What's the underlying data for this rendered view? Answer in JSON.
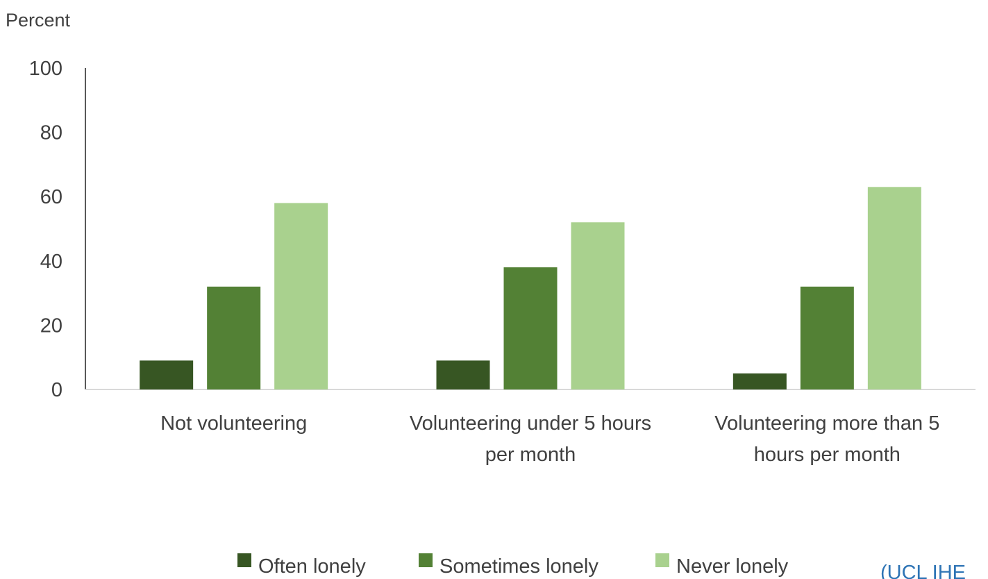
{
  "chart_data": {
    "type": "bar",
    "ylabel": "Percent",
    "xlabel": "",
    "ylim": [
      0,
      100
    ],
    "yticks": [
      0,
      20,
      40,
      60,
      80,
      100
    ],
    "categories": [
      [
        "Not volunteering"
      ],
      [
        "Volunteering under 5 hours",
        "per month"
      ],
      [
        "Volunteering more than 5",
        "hours per month"
      ]
    ],
    "series": [
      {
        "name": "Often lonely",
        "color": "#375623",
        "values": [
          9,
          9,
          5
        ]
      },
      {
        "name": "Sometimes lonely",
        "color": "#538135",
        "values": [
          32,
          38,
          32
        ]
      },
      {
        "name": "Never lonely",
        "color": "#a9d18e",
        "values": [
          58,
          52,
          63
        ]
      }
    ],
    "legend_position": "bottom",
    "grid": false
  },
  "source_note": "(UCL IHE"
}
